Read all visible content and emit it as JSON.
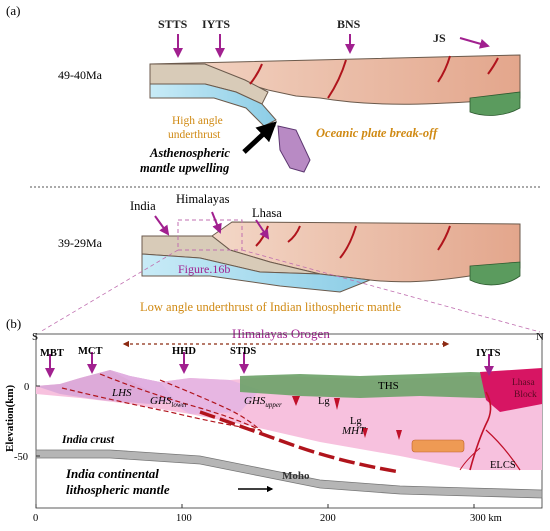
{
  "panel_a": {
    "label": "(a)",
    "upper": {
      "age": "49-40Ma",
      "markers": {
        "stts": "STTS",
        "iyts": "IYTS",
        "bns": "BNS",
        "js": "JS"
      },
      "notes": {
        "underthrust_line1": "High angle",
        "underthrust_line2": "underthrust",
        "breakoff": "Oceanic plate break-off",
        "upwelling_line1": "Asthenospheric",
        "upwelling_line2": "mantle upwelling"
      }
    },
    "lower": {
      "age": "39-29Ma",
      "markers": {
        "india": "India",
        "himalayas": "Himalayas",
        "lhasa": "Lhasa"
      },
      "figure_ref": "Figure.16b",
      "caption": "Low angle underthrust of Indian lithospheric mantle"
    }
  },
  "panel_b": {
    "label": "(b)",
    "ends": {
      "south": "S",
      "north": "N"
    },
    "orogen": "Himalayas Orogen",
    "markers": {
      "mbt": "MBT",
      "mct": "MCT",
      "hhd": "HHD",
      "stds": "STDS",
      "iyts": "IYTS"
    },
    "units": {
      "lhs": "LHS",
      "ghs_lower": "GHS",
      "ghs_lower_sub": "lower",
      "ghs_upper": "GHS",
      "ghs_upper_sub": "upper",
      "ths": "THS",
      "lg1": "Lg",
      "lg2": "Lg",
      "mht": "MHT",
      "elcs": "ELCS",
      "lhasa_line1": "Lhasa",
      "lhasa_line2": "Block",
      "india_crust": "India crust",
      "moho": "Moho",
      "mantle_line1": "India continental",
      "mantle_line2": "lithospheric mantle"
    },
    "y_axis": {
      "label": "Elevation(km)",
      "ticks": [
        "0",
        "-50"
      ]
    },
    "x_axis": {
      "ticks": [
        "0",
        "100",
        "200",
        "300 km"
      ]
    }
  },
  "colors": {
    "magenta_arrow": "#a1208f",
    "crust_tan": "#e9b49b",
    "mantle_blue": "#a9dcef",
    "section_pink": "#f7c1de",
    "ths_green": "#6fa36a",
    "lhasa_red": "#d71563",
    "fault_red": "#b0141c",
    "moho_gray": "#b5b5b5",
    "annotation_gold": "#d08a14"
  }
}
